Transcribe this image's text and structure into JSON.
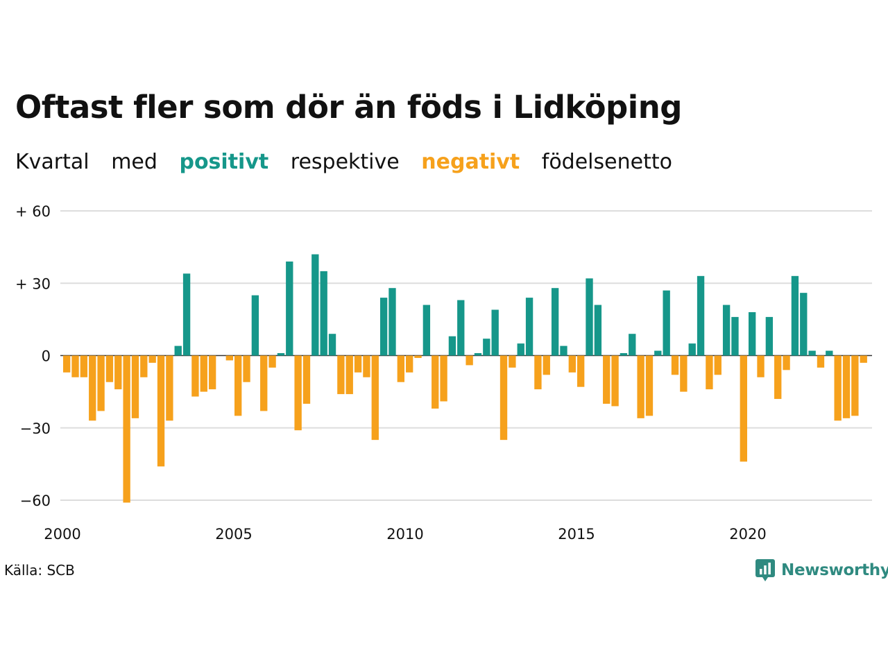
{
  "title": "Oftast fler som dör än föds i Lidköping",
  "subtitle": {
    "part1": "Kvartal",
    "part2": "med",
    "positive": "positivt",
    "part3": "respektive",
    "negative": "negativt",
    "part4": "födelsenetto"
  },
  "source": "Källa: SCB",
  "brand": {
    "name": "Newsworthy",
    "icon": "newsworthy-logo-icon"
  },
  "colors": {
    "positive": "#16978a",
    "negative": "#f6a11c",
    "grid": "#dddddd"
  },
  "chart_data": {
    "type": "bar",
    "x_start_year": 2000,
    "x_end_year": 2023.75,
    "quarters_per_year": 4,
    "ylim": [
      -60,
      60
    ],
    "y_ticks": [
      60,
      30,
      0,
      -30,
      -60
    ],
    "y_tick_labels": [
      "+ 60",
      "+ 30",
      "0",
      "−30",
      "−60"
    ],
    "x_ticks": [
      2000,
      2005,
      2010,
      2015,
      2020
    ],
    "x_tick_labels": [
      "2000",
      "2005",
      "2010",
      "2015",
      "2020"
    ],
    "grid": true,
    "values": [
      -7,
      -9,
      -9,
      -27,
      -23,
      -11,
      -14,
      -61,
      -26,
      -9,
      -3,
      -46,
      -27,
      4,
      34,
      -17,
      -15,
      -14,
      0,
      -2,
      -25,
      -11,
      25,
      -23,
      -5,
      1,
      39,
      -31,
      -20,
      42,
      35,
      9,
      -16,
      -16,
      -7,
      -9,
      -35,
      24,
      28,
      -11,
      -7,
      -1,
      21,
      -22,
      -19,
      8,
      23,
      -4,
      1,
      7,
      19,
      -35,
      -5,
      5,
      24,
      -14,
      -8,
      28,
      4,
      -7,
      -13,
      32,
      21,
      -20,
      -21,
      1,
      9,
      -26,
      -25,
      2,
      27,
      -8,
      -15,
      5,
      33,
      -14,
      -8,
      21,
      16,
      -44,
      18,
      -9,
      16,
      -18,
      -6,
      33,
      26,
      2,
      -5,
      2,
      -27,
      -26,
      -25,
      -3
    ]
  }
}
